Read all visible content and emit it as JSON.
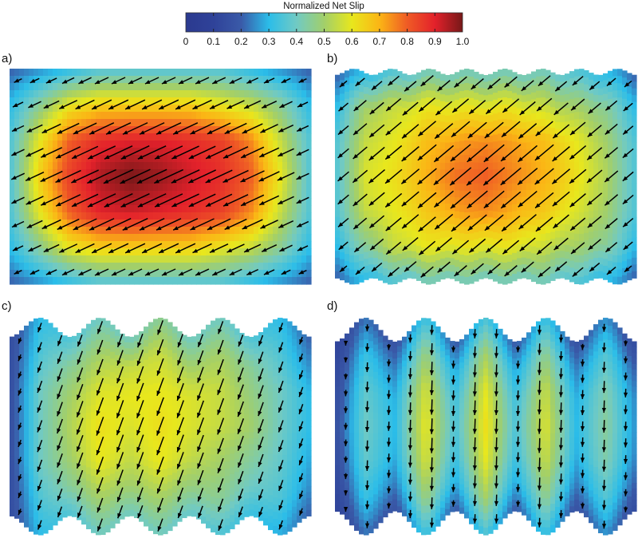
{
  "chart_data": {
    "type": "heatmap",
    "colorbar": {
      "title": "Normalized Net Slip",
      "ticks": [
        "0",
        "0.1",
        "0.2",
        "0.3",
        "0.4",
        "0.5",
        "0.6",
        "0.7",
        "0.8",
        "0.9",
        "1.0"
      ],
      "range": [
        0,
        1.0
      ],
      "colormap": [
        "#2b3a8f",
        "#2f4299",
        "#3a5aa8",
        "#2bbde9",
        "#70cac4",
        "#a2cf6a",
        "#e8e71d",
        "#fbb515",
        "#ef5b25",
        "#e3212b",
        "#761818"
      ]
    },
    "panels": [
      {
        "label": "a)",
        "arrow_direction": "down-left, shallow (about 25° below horizontal)",
        "values": [
          [
            0.2,
            0.25,
            0.3,
            0.35,
            0.35,
            0.35,
            0.35,
            0.35,
            0.3,
            0.25,
            0.2
          ],
          [
            0.3,
            0.45,
            0.6,
            0.65,
            0.65,
            0.65,
            0.65,
            0.6,
            0.55,
            0.45,
            0.3
          ],
          [
            0.35,
            0.6,
            0.8,
            0.88,
            0.9,
            0.9,
            0.88,
            0.85,
            0.75,
            0.55,
            0.35
          ],
          [
            0.35,
            0.65,
            0.85,
            0.95,
            1.0,
            0.97,
            0.92,
            0.88,
            0.8,
            0.6,
            0.35
          ],
          [
            0.35,
            0.6,
            0.8,
            0.9,
            0.92,
            0.9,
            0.88,
            0.85,
            0.75,
            0.55,
            0.35
          ],
          [
            0.3,
            0.45,
            0.6,
            0.65,
            0.65,
            0.65,
            0.65,
            0.6,
            0.55,
            0.45,
            0.3
          ],
          [
            0.2,
            0.25,
            0.3,
            0.35,
            0.35,
            0.35,
            0.35,
            0.35,
            0.3,
            0.25,
            0.2
          ]
        ]
      },
      {
        "label": "b)",
        "arrow_direction": "down-left (about 40° below horizontal)",
        "values": [
          [
            0.2,
            0.3,
            0.35,
            0.4,
            0.4,
            0.4,
            0.4,
            0.4,
            0.35,
            0.3,
            0.2
          ],
          [
            0.3,
            0.5,
            0.55,
            0.6,
            0.6,
            0.6,
            0.6,
            0.55,
            0.5,
            0.45,
            0.3
          ],
          [
            0.35,
            0.55,
            0.6,
            0.68,
            0.72,
            0.75,
            0.72,
            0.68,
            0.6,
            0.5,
            0.35
          ],
          [
            0.35,
            0.58,
            0.62,
            0.7,
            0.78,
            0.8,
            0.75,
            0.7,
            0.62,
            0.52,
            0.35
          ],
          [
            0.35,
            0.55,
            0.6,
            0.66,
            0.72,
            0.75,
            0.7,
            0.66,
            0.58,
            0.5,
            0.35
          ],
          [
            0.3,
            0.45,
            0.55,
            0.6,
            0.6,
            0.6,
            0.6,
            0.55,
            0.5,
            0.45,
            0.3
          ],
          [
            0.2,
            0.3,
            0.35,
            0.4,
            0.4,
            0.4,
            0.4,
            0.4,
            0.35,
            0.3,
            0.2
          ]
        ]
      },
      {
        "label": "c)",
        "arrow_direction": "down-left, steep (about 70° below horizontal)",
        "values": [
          [
            0.15,
            0.3,
            0.35,
            0.4,
            0.4,
            0.45,
            0.4,
            0.4,
            0.35,
            0.3,
            0.2
          ],
          [
            0.15,
            0.35,
            0.45,
            0.5,
            0.55,
            0.55,
            0.5,
            0.5,
            0.45,
            0.35,
            0.25
          ],
          [
            0.15,
            0.4,
            0.5,
            0.58,
            0.6,
            0.6,
            0.58,
            0.55,
            0.48,
            0.4,
            0.3
          ],
          [
            0.15,
            0.4,
            0.52,
            0.62,
            0.58,
            0.62,
            0.58,
            0.55,
            0.5,
            0.4,
            0.3
          ],
          [
            0.15,
            0.4,
            0.5,
            0.6,
            0.55,
            0.6,
            0.55,
            0.5,
            0.45,
            0.38,
            0.28
          ],
          [
            0.15,
            0.35,
            0.45,
            0.5,
            0.5,
            0.5,
            0.48,
            0.45,
            0.4,
            0.35,
            0.25
          ],
          [
            0.15,
            0.3,
            0.35,
            0.4,
            0.4,
            0.4,
            0.38,
            0.35,
            0.32,
            0.28,
            0.2
          ]
        ]
      },
      {
        "label": "d)",
        "arrow_direction": "down (nearly vertical)",
        "values": [
          [
            0.1,
            0.22,
            0.17,
            0.33,
            0.19,
            0.34,
            0.19,
            0.32,
            0.17,
            0.25,
            0.14
          ],
          [
            0.12,
            0.32,
            0.24,
            0.48,
            0.28,
            0.5,
            0.28,
            0.46,
            0.24,
            0.36,
            0.2
          ],
          [
            0.14,
            0.38,
            0.29,
            0.57,
            0.33,
            0.59,
            0.33,
            0.55,
            0.29,
            0.43,
            0.24
          ],
          [
            0.15,
            0.4,
            0.3,
            0.6,
            0.35,
            0.62,
            0.35,
            0.58,
            0.3,
            0.45,
            0.25
          ],
          [
            0.14,
            0.38,
            0.29,
            0.57,
            0.33,
            0.59,
            0.33,
            0.55,
            0.29,
            0.43,
            0.24
          ],
          [
            0.12,
            0.32,
            0.24,
            0.48,
            0.28,
            0.5,
            0.28,
            0.46,
            0.24,
            0.36,
            0.2
          ],
          [
            0.1,
            0.22,
            0.17,
            0.33,
            0.19,
            0.34,
            0.19,
            0.32,
            0.17,
            0.25,
            0.14
          ]
        ]
      }
    ]
  }
}
